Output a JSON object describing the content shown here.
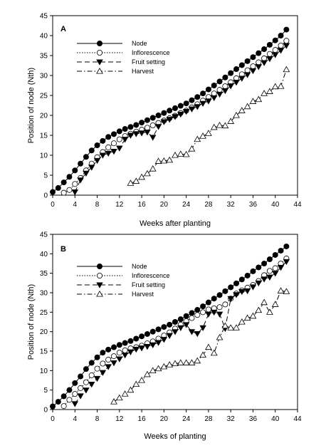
{
  "chart_data": [
    {
      "type": "line",
      "panel_label": "A",
      "xlabel": "Weeks after planting",
      "ylabel": "Position of node (Nth)",
      "xlim": [
        0,
        44
      ],
      "ylim": [
        0,
        45
      ],
      "xticks": [
        0,
        4,
        8,
        12,
        16,
        20,
        24,
        28,
        32,
        36,
        40,
        44
      ],
      "yticks": [
        0,
        5,
        10,
        15,
        20,
        25,
        30,
        35,
        40,
        45
      ],
      "legend_position": "top-left",
      "series": [
        {
          "name": "Node",
          "marker": "filled-circle",
          "line": "solid",
          "x": [
            0,
            1,
            2,
            3,
            4,
            5,
            6,
            7,
            8,
            9,
            10,
            11,
            12,
            13,
            14,
            15,
            16,
            17,
            18,
            19,
            20,
            21,
            22,
            23,
            24,
            25,
            26,
            27,
            28,
            29,
            30,
            31,
            32,
            33,
            34,
            35,
            36,
            37,
            38,
            39,
            40,
            41,
            42
          ],
          "y": [
            0.8,
            1.8,
            3.2,
            4.6,
            6.2,
            7.9,
            9.6,
            11.2,
            12.5,
            13.6,
            14.6,
            15.3,
            16.0,
            16.6,
            17.1,
            17.6,
            18.2,
            18.8,
            19.4,
            20.0,
            20.6,
            21.2,
            21.8,
            22.4,
            23.0,
            23.8,
            24.6,
            25.5,
            26.5,
            27.5,
            28.5,
            29.5,
            30.6,
            31.6,
            32.6,
            33.6,
            34.6,
            35.6,
            36.6,
            37.7,
            38.8,
            40.0,
            41.5
          ]
        },
        {
          "name": "Inflorescence",
          "marker": "open-circle",
          "line": "dotted",
          "x": [
            2,
            3,
            4,
            5,
            6,
            7,
            8,
            9,
            10,
            11,
            12,
            13,
            14,
            15,
            16,
            17,
            18,
            19,
            20,
            21,
            22,
            23,
            24,
            25,
            26,
            27,
            28,
            29,
            30,
            31,
            32,
            33,
            34,
            35,
            36,
            37,
            38,
            39,
            40,
            41,
            42
          ],
          "y": [
            0.6,
            1.3,
            2.8,
            4.3,
            6.2,
            7.9,
            9.5,
            10.8,
            12.0,
            13.0,
            14.0,
            14.8,
            15.4,
            15.9,
            16.4,
            16.9,
            17.5,
            18.1,
            18.7,
            19.3,
            19.9,
            20.6,
            21.2,
            22.0,
            22.8,
            23.7,
            24.6,
            25.5,
            26.4,
            27.3,
            28.3,
            29.3,
            30.3,
            31.3,
            32.3,
            33.3,
            34.3,
            35.4,
            36.4,
            37.5,
            38.7
          ]
        },
        {
          "name": "Fruit setting",
          "marker": "filled-triangle-down",
          "line": "dashed",
          "x": [
            4,
            5,
            6,
            7,
            8,
            9,
            10,
            11,
            12,
            13,
            14,
            15,
            16,
            17,
            18,
            19,
            20,
            21,
            22,
            23,
            24,
            25,
            26,
            27,
            28,
            29,
            30,
            31,
            32,
            33,
            34,
            35,
            36,
            37,
            38,
            39,
            40,
            41,
            42
          ],
          "y": [
            0.8,
            3.8,
            5.5,
            7.0,
            8.7,
            10.0,
            10.5,
            11.0,
            11.8,
            14.0,
            15.0,
            15.4,
            15.6,
            15.8,
            14.5,
            17.2,
            18.4,
            19.0,
            19.7,
            20.3,
            21.0,
            21.6,
            22.2,
            23.0,
            23.6,
            24.4,
            25.3,
            26.2,
            27.4,
            28.3,
            29.3,
            30.2,
            31.2,
            32.2,
            33.2,
            34.2,
            35.2,
            36.3,
            37.5
          ]
        },
        {
          "name": "Harvest",
          "marker": "open-triangle-up",
          "line": "dash-dot",
          "x": [
            14,
            15,
            16,
            17,
            18,
            19,
            20,
            21,
            22,
            23,
            24,
            25,
            26,
            27,
            28,
            29,
            30,
            31,
            32,
            33,
            34,
            35,
            36,
            37,
            38,
            39,
            40,
            41,
            42
          ],
          "y": [
            3.0,
            3.5,
            4.5,
            5.4,
            6.6,
            8.5,
            8.6,
            8.8,
            10.0,
            10.3,
            10.2,
            11.6,
            14.0,
            14.8,
            15.5,
            17.0,
            17.5,
            17.4,
            18.5,
            20.0,
            21.2,
            22.2,
            23.5,
            24.0,
            25.5,
            26.0,
            27.2,
            27.3,
            31.5
          ]
        }
      ]
    },
    {
      "type": "line",
      "panel_label": "B",
      "xlabel": "Weeks of planting",
      "ylabel": "Position of node (Nth)",
      "xlim": [
        0,
        44
      ],
      "ylim": [
        0,
        45
      ],
      "xticks": [
        0,
        4,
        8,
        12,
        16,
        20,
        24,
        28,
        32,
        36,
        40,
        44
      ],
      "yticks": [
        0,
        5,
        10,
        15,
        20,
        25,
        30,
        35,
        40,
        45
      ],
      "legend_position": "top-left",
      "series": [
        {
          "name": "Node",
          "marker": "filled-circle",
          "line": "solid",
          "x": [
            0,
            1,
            2,
            3,
            4,
            5,
            6,
            7,
            8,
            9,
            10,
            11,
            12,
            13,
            14,
            15,
            16,
            17,
            18,
            19,
            20,
            21,
            22,
            23,
            24,
            25,
            26,
            27,
            28,
            29,
            30,
            31,
            32,
            33,
            34,
            35,
            36,
            37,
            38,
            39,
            40,
            41,
            42
          ],
          "y": [
            0.8,
            2.0,
            3.4,
            5.0,
            6.8,
            8.5,
            10.4,
            12.0,
            13.4,
            14.6,
            15.4,
            16.0,
            16.6,
            17.1,
            17.6,
            18.2,
            18.8,
            19.4,
            20.0,
            20.6,
            21.2,
            21.8,
            22.5,
            23.2,
            24.0,
            24.8,
            25.6,
            26.5,
            27.5,
            28.5,
            29.4,
            30.4,
            31.4,
            32.4,
            33.4,
            34.4,
            35.5,
            36.5,
            37.5,
            38.6,
            39.7,
            40.8,
            41.9
          ]
        },
        {
          "name": "Inflorescence",
          "marker": "open-circle",
          "line": "dotted",
          "x": [
            2,
            3,
            4,
            5,
            6,
            7,
            8,
            9,
            10,
            11,
            12,
            13,
            14,
            15,
            16,
            17,
            18,
            19,
            20,
            21,
            22,
            23,
            24,
            25,
            26,
            27,
            28,
            29,
            30,
            31,
            32,
            33,
            34,
            35,
            36,
            37,
            38,
            39,
            40,
            41,
            42
          ],
          "y": [
            0.9,
            2.5,
            4.0,
            5.5,
            7.0,
            8.8,
            10.5,
            11.8,
            12.8,
            13.7,
            14.6,
            15.2,
            15.7,
            16.0,
            16.4,
            17.0,
            17.5,
            18.2,
            19.0,
            19.8,
            20.8,
            21.8,
            22.7,
            23.5,
            24.3,
            25.0,
            25.7,
            26.0,
            26.3,
            27.0,
            28.5,
            29.8,
            30.6,
            31.3,
            32.0,
            33.0,
            34.5,
            35.6,
            36.3,
            37.5,
            38.8
          ]
        },
        {
          "name": "Fruit setting",
          "marker": "filled-triangle-down",
          "line": "dashed",
          "x": [
            4,
            5,
            6,
            7,
            8,
            9,
            10,
            11,
            12,
            13,
            14,
            15,
            16,
            17,
            18,
            19,
            20,
            21,
            22,
            23,
            24,
            25,
            26,
            27,
            28,
            29,
            30,
            31,
            32,
            33,
            34,
            35,
            36,
            37,
            38,
            39,
            40,
            41,
            42
          ],
          "y": [
            1.5,
            3.5,
            5.0,
            6.5,
            8.0,
            9.5,
            11.0,
            12.0,
            13.0,
            14.0,
            14.8,
            15.5,
            15.8,
            16.2,
            16.6,
            17.2,
            18.0,
            19.0,
            20.0,
            21.0,
            21.8,
            20.0,
            19.5,
            21.0,
            24.5,
            25.0,
            24.5,
            20.8,
            28.5,
            29.5,
            30.3,
            30.5,
            31.5,
            32.5,
            33.5,
            34.0,
            35.0,
            36.5,
            38.0
          ]
        },
        {
          "name": "Harvest",
          "marker": "open-triangle-up",
          "line": "dash-dot",
          "x": [
            11,
            12,
            13,
            14,
            15,
            16,
            17,
            18,
            19,
            20,
            21,
            22,
            23,
            24,
            25,
            26,
            27,
            28,
            29,
            30,
            31,
            32,
            33,
            34,
            35,
            36,
            37,
            38,
            39,
            40,
            41,
            42
          ],
          "y": [
            2.0,
            3.0,
            4.0,
            5.0,
            6.5,
            7.5,
            9.0,
            10.0,
            10.5,
            11.0,
            11.5,
            11.8,
            12.0,
            12.0,
            12.0,
            12.5,
            14.0,
            16.0,
            14.5,
            18.5,
            21.5,
            21.0,
            21.0,
            22.5,
            23.5,
            24.0,
            25.5,
            27.5,
            25.0,
            27.0,
            30.5,
            30.3
          ]
        }
      ]
    }
  ]
}
